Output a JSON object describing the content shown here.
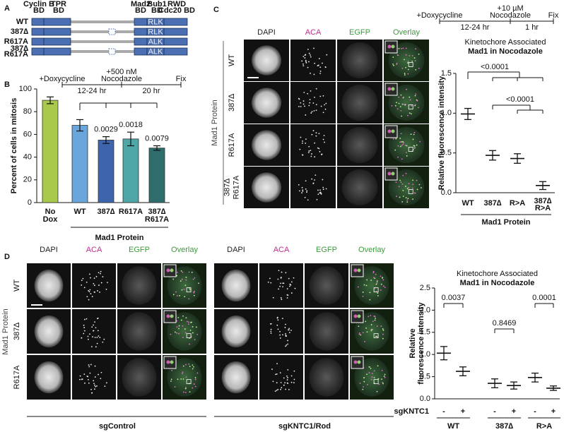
{
  "panel_labels": [
    "A",
    "B",
    "C",
    "D"
  ],
  "panel_a": {
    "domains": [
      [
        "Cyclin B",
        "BD"
      ],
      [
        "TPR",
        "BD"
      ],
      [
        "Mad2",
        "BD"
      ],
      [
        "Bub1",
        "BD"
      ],
      [
        "RWD",
        "Cdc20 BD"
      ]
    ],
    "rows": [
      [
        "WT"
      ],
      [
        "387∆"
      ],
      [
        "R617A"
      ],
      [
        "387∆",
        "R617A"
      ]
    ],
    "motifs": [
      "RLK",
      "RLK",
      "ALK",
      "ALK"
    ]
  },
  "panel_c_images": {
    "columns": [
      "DAPI",
      "ACA",
      "EGFP",
      "Overlay"
    ],
    "rows": [
      [
        "WT"
      ],
      [
        "387∆"
      ],
      [
        "R617A"
      ],
      [
        "387∆",
        "R617A"
      ]
    ],
    "group_label": "Mad1 Protein"
  },
  "panel_d_images": {
    "columns": [
      "DAPI",
      "ACA",
      "EGFP",
      "Overlay"
    ],
    "rows": [
      "WT",
      "387∆",
      "R617A"
    ],
    "group_label": "Mad1 Protein",
    "conditions": [
      "sgControl",
      "sgKNTC1/Rod"
    ]
  },
  "chart_data": [
    {
      "type": "bar",
      "ylabel": "Percent of cells in mitosis",
      "categories": [
        [
          "No",
          "Dox"
        ],
        [
          "WT"
        ],
        [
          "387∆"
        ],
        [
          "R617A"
        ],
        [
          "387∆",
          "R617A"
        ]
      ],
      "values": [
        90,
        68,
        55,
        56,
        48
      ],
      "errors": [
        3,
        5,
        3,
        6,
        2
      ],
      "colors": [
        "#a9c94c",
        "#6aa6dc",
        "#3e64ab",
        "#4ea7a6",
        "#2f6d6c"
      ],
      "p_values": [
        null,
        null,
        "0.0029",
        "0.0018",
        "0.0079"
      ],
      "ylim": [
        0,
        100
      ],
      "yticks": [
        0,
        20,
        40,
        60,
        80,
        100
      ],
      "group_label": "Mad1 Protein",
      "timeline": {
        "events": [
          [
            "+Doxycycline"
          ],
          [
            "+500 nM",
            "Nocodazole"
          ],
          [
            "Fix"
          ]
        ],
        "durations": [
          "12-24 hr",
          "20 hr"
        ]
      }
    },
    {
      "type": "dot",
      "title": [
        "Kinetochore Associated",
        "Mad1 in Nocodazole"
      ],
      "ylabel": [
        "Relative fluorescence intensity"
      ],
      "categories": [
        [
          "WT"
        ],
        [
          "387∆"
        ],
        [
          "R>A"
        ],
        [
          "387∆",
          "R>A"
        ]
      ],
      "values": [
        0.99,
        0.47,
        0.43,
        0.09
      ],
      "errors": [
        0.07,
        0.06,
        0.06,
        0.05
      ],
      "color": "#111111",
      "p_values": [
        "<0.0001",
        "<0.0001"
      ],
      "ylim": [
        0,
        1.5
      ],
      "yticks": [
        {
          "value": 0,
          "label": "0.0"
        },
        0.5,
        {
          "value": 1,
          "label": "1.0"
        },
        1.5
      ],
      "group_label": "Mad1 Protein",
      "timeline": {
        "events": [
          [
            "+Doxycycline"
          ],
          [
            "+10 µM",
            "Nocodazole"
          ],
          [
            "Fix"
          ]
        ],
        "durations": [
          "12-24 hr",
          "1 hr"
        ]
      }
    },
    {
      "type": "dot",
      "title": [
        "Kinetochore Associated",
        "Mad1 in Nocodazole"
      ],
      "ylabel": [
        "Relative",
        "fluorescence intensity"
      ],
      "categories": [
        [
          "-"
        ],
        [
          "+"
        ],
        [
          "-"
        ],
        [
          "+"
        ],
        [
          "-"
        ],
        [
          "+"
        ]
      ],
      "values": [
        1.03,
        0.62,
        0.35,
        0.3,
        0.48,
        0.24
      ],
      "errors": [
        0.15,
        0.1,
        0.1,
        0.08,
        0.1,
        0.05
      ],
      "color": "#111111",
      "p_values": [
        "0.0037",
        "0.8469",
        "0.0001"
      ],
      "ylim": [
        0,
        2.5
      ],
      "yticks": [
        {
          "value": 0,
          "label": "0.0"
        },
        0.5,
        {
          "value": 1,
          "label": "1.0"
        },
        1.5,
        {
          "value": 2,
          "label": "2.0"
        },
        2.5
      ],
      "factor_label": "sgKNTC1",
      "groups": [
        "WT",
        "387∆",
        "R>A"
      ]
    }
  ]
}
